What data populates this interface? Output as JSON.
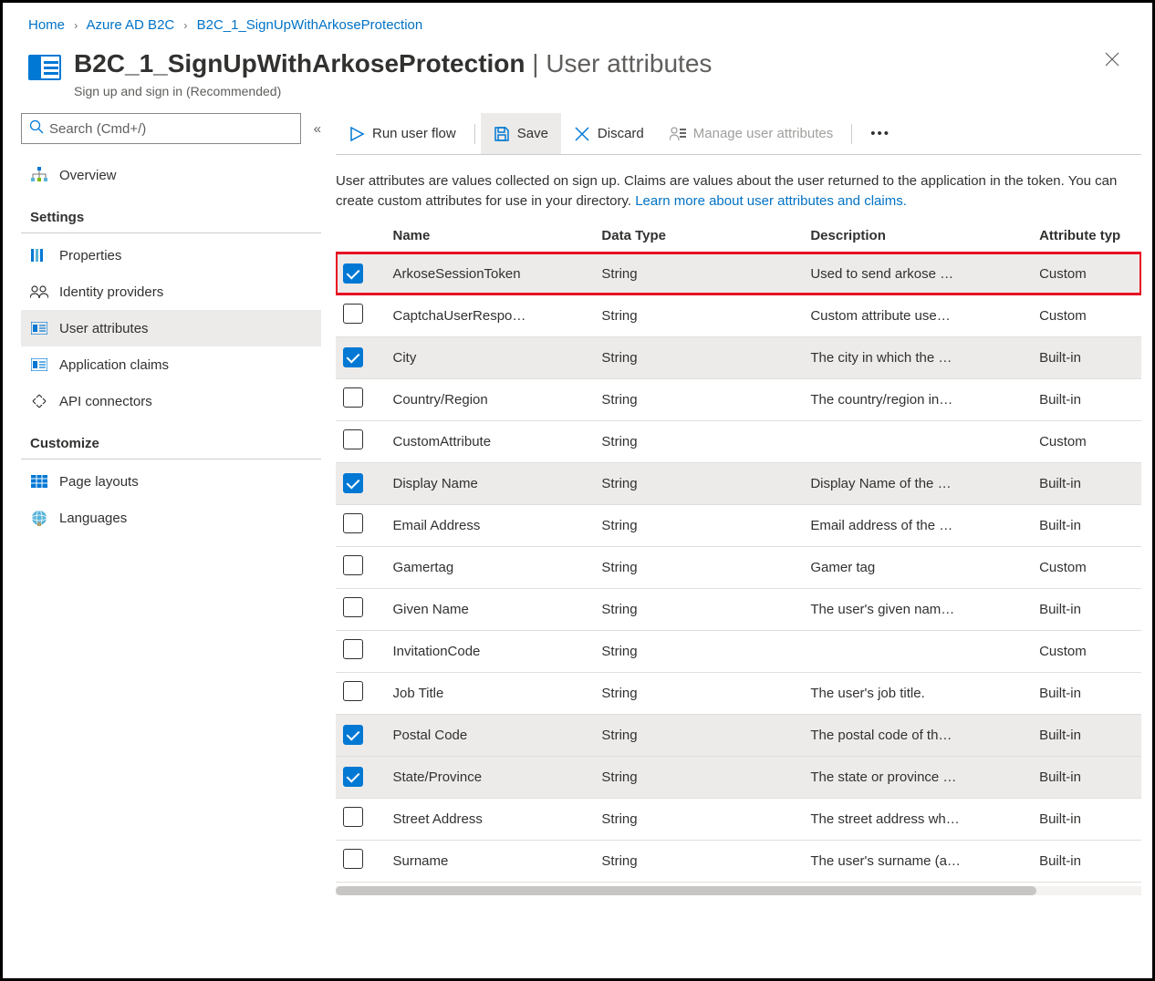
{
  "breadcrumb": {
    "items": [
      "Home",
      "Azure AD B2C",
      "B2C_1_SignUpWithArkoseProtection"
    ]
  },
  "header": {
    "title_main": "B2C_1_SignUpWithArkoseProtection",
    "title_sub": " | User attributes",
    "subtitle": "Sign up and sign in (Recommended)"
  },
  "search": {
    "placeholder": "Search (Cmd+/)"
  },
  "sidebar": {
    "overview": "Overview",
    "section_settings": "Settings",
    "section_customize": "Customize",
    "items_settings": [
      {
        "label": "Properties"
      },
      {
        "label": "Identity providers"
      },
      {
        "label": "User attributes"
      },
      {
        "label": "Application claims"
      },
      {
        "label": "API connectors"
      }
    ],
    "items_customize": [
      {
        "label": "Page layouts"
      },
      {
        "label": "Languages"
      }
    ]
  },
  "toolbar": {
    "run": "Run user flow",
    "save": "Save",
    "discard": "Discard",
    "manage": "Manage user attributes"
  },
  "description": {
    "text1": "User attributes are values collected on sign up. Claims are values about the user returned to the application in the token. You can create custom attributes for use in your directory. ",
    "link": "Learn more about user attributes and claims."
  },
  "table": {
    "columns": [
      "Name",
      "Data Type",
      "Description",
      "Attribute typ"
    ],
    "rows": [
      {
        "checked": true,
        "highlight": true,
        "name": "ArkoseSessionToken",
        "type": "String",
        "desc": "Used to send arkose …",
        "attr": "Custom"
      },
      {
        "checked": false,
        "highlight": false,
        "name": "CaptchaUserRespo…",
        "type": "String",
        "desc": "Custom attribute use…",
        "attr": "Custom"
      },
      {
        "checked": true,
        "highlight": false,
        "name": "City",
        "type": "String",
        "desc": "The city in which the …",
        "attr": "Built-in"
      },
      {
        "checked": false,
        "highlight": false,
        "name": "Country/Region",
        "type": "String",
        "desc": "The country/region in…",
        "attr": "Built-in"
      },
      {
        "checked": false,
        "highlight": false,
        "name": "CustomAttribute",
        "type": "String",
        "desc": "",
        "attr": "Custom"
      },
      {
        "checked": true,
        "highlight": false,
        "name": "Display Name",
        "type": "String",
        "desc": "Display Name of the …",
        "attr": "Built-in"
      },
      {
        "checked": false,
        "highlight": false,
        "name": "Email Address",
        "type": "String",
        "desc": "Email address of the …",
        "attr": "Built-in"
      },
      {
        "checked": false,
        "highlight": false,
        "name": "Gamertag",
        "type": "String",
        "desc": "Gamer tag",
        "attr": "Custom"
      },
      {
        "checked": false,
        "highlight": false,
        "name": "Given Name",
        "type": "String",
        "desc": "The user's given nam…",
        "attr": "Built-in"
      },
      {
        "checked": false,
        "highlight": false,
        "name": "InvitationCode",
        "type": "String",
        "desc": "",
        "attr": "Custom"
      },
      {
        "checked": false,
        "highlight": false,
        "name": "Job Title",
        "type": "String",
        "desc": "The user's job title.",
        "attr": "Built-in"
      },
      {
        "checked": true,
        "highlight": false,
        "name": "Postal Code",
        "type": "String",
        "desc": "The postal code of th…",
        "attr": "Built-in"
      },
      {
        "checked": true,
        "highlight": false,
        "name": "State/Province",
        "type": "String",
        "desc": "The state or province …",
        "attr": "Built-in"
      },
      {
        "checked": false,
        "highlight": false,
        "name": "Street Address",
        "type": "String",
        "desc": "The street address wh…",
        "attr": "Built-in"
      },
      {
        "checked": false,
        "highlight": false,
        "name": "Surname",
        "type": "String",
        "desc": "The user's surname (a…",
        "attr": "Built-in"
      }
    ]
  },
  "colors": {
    "link": "#0072c6",
    "accent": "#0078d4",
    "highlight_border": "#e81123",
    "selected_bg": "#edebe9",
    "text": "#323130",
    "muted": "#605e5c"
  }
}
